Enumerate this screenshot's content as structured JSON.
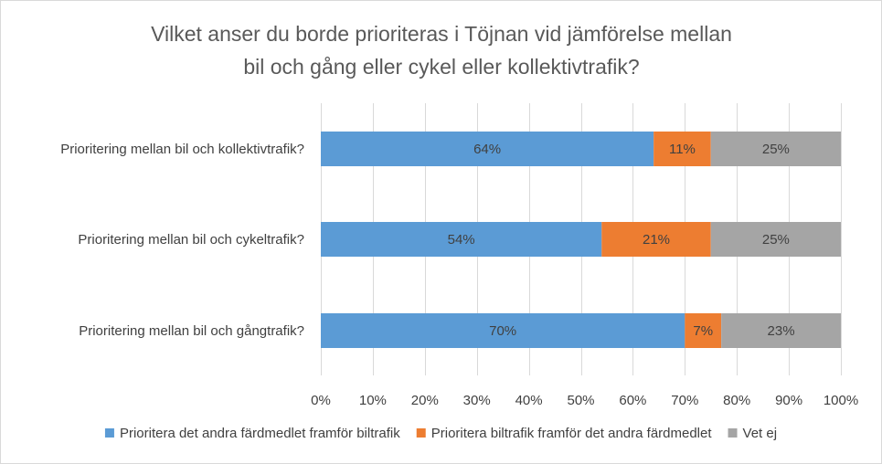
{
  "chart_data": {
    "type": "bar",
    "orientation": "horizontal",
    "stacked": "percent",
    "title": [
      "Vilket anser du borde prioriteras i Töjnan vid jämförelse mellan",
      "bil och gång eller cykel eller kollektivtrafik?"
    ],
    "categories": [
      "Prioritering mellan bil och kollektivtrafik?",
      "Prioritering mellan bil och cykeltrafik?",
      "Prioritering mellan bil och gångtrafik?"
    ],
    "series": [
      {
        "name": "Prioritera det andra färdmedlet framför biltrafik",
        "color": "#5b9bd5",
        "values": [
          64,
          54,
          70
        ],
        "labels": [
          "64%",
          "54%",
          "70%"
        ]
      },
      {
        "name": "Prioritera biltrafik framför det andra färdmedlet",
        "color": "#ed7d31",
        "values": [
          11,
          21,
          7
        ],
        "labels": [
          "11%",
          "21%",
          "7%"
        ]
      },
      {
        "name": "Vet ej",
        "color": "#a5a5a5",
        "values": [
          25,
          25,
          23
        ],
        "labels": [
          "25%",
          "25%",
          "23%"
        ]
      }
    ],
    "xlim": [
      0,
      100
    ],
    "xticks": [
      "0%",
      "10%",
      "20%",
      "30%",
      "40%",
      "50%",
      "60%",
      "70%",
      "80%",
      "90%",
      "100%"
    ],
    "grid": true,
    "legend_position": "bottom"
  }
}
